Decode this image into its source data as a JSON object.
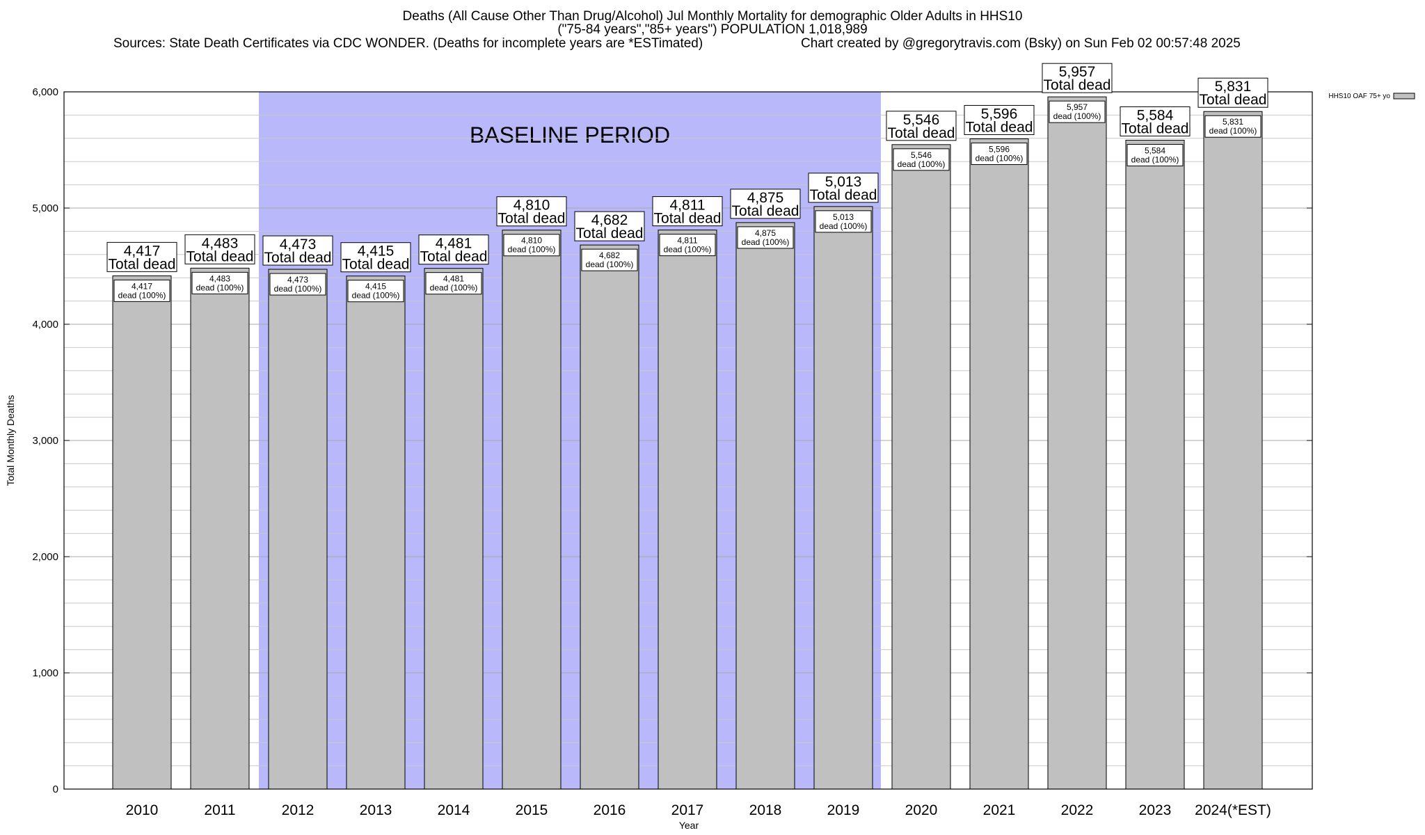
{
  "title": {
    "line1": "Deaths (All Cause Other Than Drug/Alcohol) Jul Monthly Mortality for demographic Older Adults in HHS10",
    "line2": "(\"75-84 years\",\"85+ years\") POPULATION 1,018,989",
    "sources": "Sources: State Death Certificates via CDC WONDER. (Deaths for incomplete years are *ESTimated)",
    "credit": "Chart created by @gregorytravis.com (Bsky) on Sun Feb 02 00:57:48 2025"
  },
  "colors": {
    "bar_fill": "#c0c0c0",
    "baseline_fill": "#b8b8fb",
    "grid": "#b0b0b0"
  },
  "chart_data": {
    "type": "bar",
    "categories": [
      "2010",
      "2011",
      "2012",
      "2013",
      "2014",
      "2015",
      "2016",
      "2017",
      "2018",
      "2019",
      "2020",
      "2021",
      "2022",
      "2023",
      "2024(*EST)"
    ],
    "series": [
      {
        "name": "HHS10 OAF 75+ yo",
        "values": [
          4417,
          4483,
          4473,
          4415,
          4481,
          4810,
          4682,
          4811,
          4875,
          5013,
          5546,
          5596,
          5957,
          5584,
          5831
        ]
      }
    ],
    "big_labels": [
      "4,417",
      "4,483",
      "4,473",
      "4,415",
      "4,481",
      "4,810",
      "4,682",
      "4,811",
      "4,875",
      "5,013",
      "5,546",
      "5,596",
      "5,957",
      "5,584",
      "5,831"
    ],
    "big_suffix": "Total dead",
    "small_suffix": "dead (100%)",
    "yticks": [
      "0",
      "1,000",
      "2,000",
      "3,000",
      "4,000",
      "5,000",
      "6,000"
    ],
    "ylim": [
      0,
      6000
    ],
    "xlabel": "Year",
    "ylabel": "Total Monthly Deaths",
    "grid": true,
    "legend_position": "top-right",
    "baseline_label": "BASELINE PERIOD",
    "baseline_range": [
      "2012",
      "2019"
    ]
  }
}
